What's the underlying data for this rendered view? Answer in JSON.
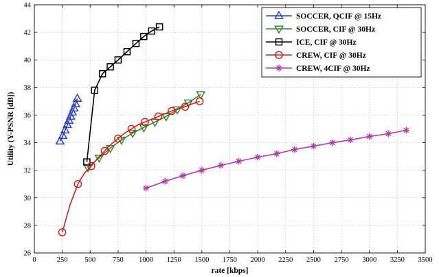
{
  "chart_data": {
    "type": "line",
    "title": "",
    "xlabel": "rate [kbps]",
    "ylabel": "Utility (Y-PSNR [dB])",
    "xlim": [
      0,
      3500
    ],
    "ylim": [
      26,
      44
    ],
    "xticks": [
      0,
      250,
      500,
      750,
      1000,
      1250,
      1500,
      1750,
      2000,
      2250,
      2500,
      2750,
      3000,
      3250,
      3500
    ],
    "yticks": [
      26,
      28,
      30,
      32,
      34,
      36,
      38,
      40,
      42,
      44
    ],
    "grid": true,
    "legend_position": "top-right",
    "series": [
      {
        "name": "SOCCER, QCIF @ 15Hz",
        "color": "#2b3fbf",
        "marker": "triangle-up",
        "x": [
          230,
          255,
          275,
          295,
          310,
          325,
          340,
          355,
          370,
          385
        ],
        "y": [
          34.1,
          34.5,
          34.9,
          35.3,
          35.6,
          35.9,
          36.2,
          36.5,
          36.8,
          37.2
        ]
      },
      {
        "name": "SOCCER, CIF @ 30Hz",
        "color": "#2e8b2e",
        "marker": "triangle-down",
        "x": [
          480,
          580,
          680,
          780,
          880,
          980,
          1080,
          1180,
          1280,
          1380,
          1490
        ],
        "y": [
          32.2,
          32.9,
          33.6,
          34.2,
          34.7,
          35.1,
          35.5,
          35.9,
          36.4,
          36.9,
          37.5
        ]
      },
      {
        "name": "ICE, CIF @ 30Hz",
        "color": "#000000",
        "marker": "square",
        "x": [
          470,
          540,
          610,
          680,
          750,
          830,
          910,
          980,
          1050,
          1120
        ],
        "y": [
          32.6,
          37.8,
          39.0,
          39.5,
          40.0,
          40.6,
          41.2,
          41.7,
          42.1,
          42.4
        ]
      },
      {
        "name": "CREW, CIF @ 30Hz",
        "color": "#dd1c1c",
        "marker": "circle",
        "x": [
          250,
          320,
          390,
          450,
          510,
          570,
          630,
          690,
          750,
          810,
          870,
          930,
          990,
          1050,
          1110,
          1170,
          1230,
          1290,
          1350,
          1410,
          1480
        ],
        "y": [
          27.5,
          29.5,
          31.0,
          31.8,
          32.3,
          32.9,
          33.4,
          33.9,
          34.3,
          34.7,
          35.0,
          35.3,
          35.5,
          35.7,
          35.9,
          36.1,
          36.3,
          36.5,
          36.6,
          36.8,
          37.0
        ],
        "markers_every": 2
      },
      {
        "name": "CREW, 4CIF @ 30Hz",
        "color": "#b23aaf",
        "marker": "asterisk",
        "x": [
          1000,
          1170,
          1330,
          1500,
          1670,
          1830,
          2000,
          2170,
          2330,
          2500,
          2670,
          2830,
          3000,
          3170,
          3330
        ],
        "y": [
          30.7,
          31.2,
          31.6,
          32.0,
          32.35,
          32.65,
          32.95,
          33.2,
          33.5,
          33.75,
          34.0,
          34.2,
          34.45,
          34.65,
          34.9
        ]
      }
    ]
  }
}
